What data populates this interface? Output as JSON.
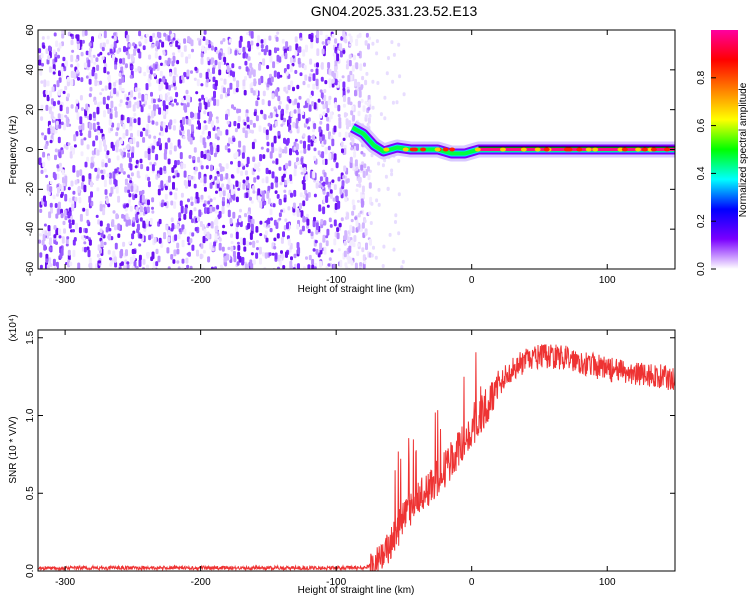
{
  "title": "GN04.2025.331.23.52.E13",
  "chart_data": [
    {
      "type": "heatmap",
      "xlabel": "Height of straight line (km)",
      "ylabel": "Frequency (Hz)",
      "xlim": [
        -320,
        150
      ],
      "ylim": [
        -60,
        60
      ],
      "x_ticks": [
        -300,
        -200,
        -100,
        0,
        100
      ],
      "y_ticks": [
        -60,
        -40,
        -20,
        0,
        20,
        40,
        60
      ],
      "colorbar": {
        "label": "Normalized spectral amplitude",
        "range": [
          0,
          1
        ],
        "ticks": [
          "0.0",
          "0.2",
          "0.4",
          "0.6",
          "0.8"
        ],
        "tick_values": [
          0.0,
          0.2,
          0.4,
          0.6,
          0.8
        ],
        "colors": [
          "#ffffff",
          "#7a00ff",
          "#0000ff",
          "#00ffff",
          "#00ff00",
          "#ffff00",
          "#ff8000",
          "#ff0000",
          "#ff00a0"
        ]
      },
      "noise_region_x": [
        -320,
        -80
      ],
      "signal_line": {
        "frequency": 0,
        "ridge": [
          {
            "x": -88,
            "y": 11
          },
          {
            "x": -80,
            "y": 8
          },
          {
            "x": -72,
            "y": 2
          },
          {
            "x": -65,
            "y": -1
          },
          {
            "x": -55,
            "y": 1
          },
          {
            "x": -45,
            "y": 0
          },
          {
            "x": -35,
            "y": 0
          },
          {
            "x": -25,
            "y": 0
          },
          {
            "x": -15,
            "y": -2
          },
          {
            "x": -5,
            "y": -2
          },
          {
            "x": 5,
            "y": 0
          },
          {
            "x": 150,
            "y": 0
          }
        ]
      }
    },
    {
      "type": "line",
      "xlabel": "Height of straight line (km)",
      "ylabel": "SNR (10 * V/V)",
      "y_multiplier": "(x10⁴)",
      "xlim": [
        -320,
        150
      ],
      "ylim": [
        0,
        1.55
      ],
      "x_ticks": [
        -300,
        -200,
        -100,
        0,
        100
      ],
      "y_ticks": [
        "0.0",
        "0.5",
        "1.0",
        "1.5"
      ],
      "y_tick_values": [
        0.0,
        0.5,
        1.0,
        1.5
      ],
      "series": [
        {
          "color": "#ee3333",
          "x": [
            -320,
            -250,
            -150,
            -80,
            -70,
            -60,
            -55,
            -50,
            -40,
            -30,
            -20,
            -10,
            0,
            10,
            20,
            30,
            40,
            50,
            60,
            70,
            80,
            90,
            100,
            110,
            120,
            130,
            140,
            150
          ],
          "y": [
            0.02,
            0.02,
            0.02,
            0.02,
            0.05,
            0.15,
            0.25,
            0.35,
            0.45,
            0.55,
            0.65,
            0.78,
            0.9,
            1.05,
            1.2,
            1.3,
            1.35,
            1.38,
            1.38,
            1.37,
            1.35,
            1.32,
            1.3,
            1.28,
            1.27,
            1.26,
            1.25,
            1.23
          ]
        }
      ]
    }
  ]
}
